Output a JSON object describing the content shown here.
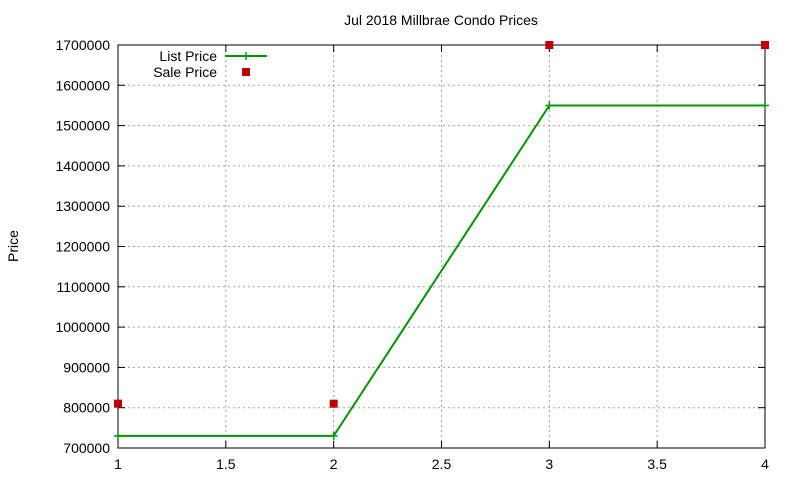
{
  "chart_data": {
    "type": "line",
    "title": "Jul 2018 Millbrae Condo Prices",
    "xlabel": "",
    "ylabel": "Price",
    "xlim": [
      1,
      4
    ],
    "ylim": [
      700000,
      1700000
    ],
    "xticks": [
      1,
      1.5,
      2,
      2.5,
      3,
      3.5,
      4
    ],
    "xtick_labels": [
      "1",
      "1.5",
      "2",
      "2.5",
      "3",
      "3.5",
      "4"
    ],
    "yticks": [
      700000,
      800000,
      900000,
      1000000,
      1100000,
      1200000,
      1300000,
      1400000,
      1500000,
      1600000,
      1700000
    ],
    "ytick_labels": [
      "700000",
      "800000",
      "900000",
      "1000000",
      "1100000",
      "1200000",
      "1300000",
      "1400000",
      "1500000",
      "1600000",
      "1700000"
    ],
    "grid": true,
    "legend_position": "top-left",
    "series": [
      {
        "name": "List Price",
        "style": "linespoints",
        "marker": "plus",
        "color": "#009900",
        "x": [
          1,
          2,
          3,
          4
        ],
        "y": [
          730000,
          730000,
          1550000,
          1550000
        ]
      },
      {
        "name": "Sale Price",
        "style": "points",
        "marker": "square",
        "color": "#c00000",
        "x": [
          1,
          2,
          3,
          4
        ],
        "y": [
          810000,
          810000,
          1700000,
          1700000
        ]
      }
    ]
  }
}
